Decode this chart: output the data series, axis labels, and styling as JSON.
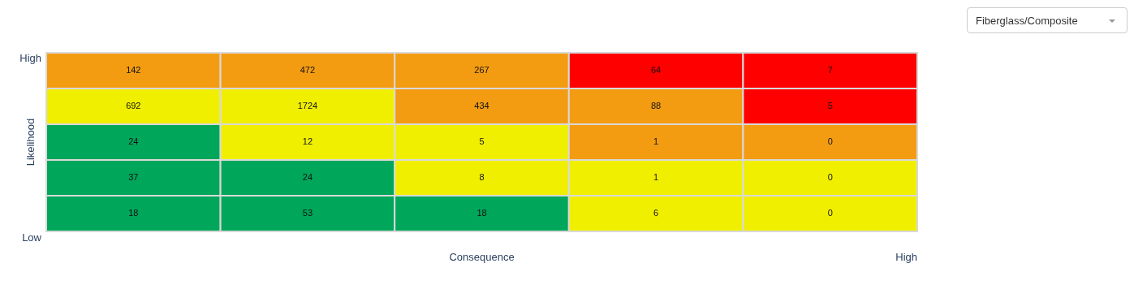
{
  "chart_data": {
    "type": "heatmap",
    "xlabel": "Consequence",
    "ylabel": "Likelihood",
    "categories": [
      null,
      null,
      null,
      null,
      null
    ],
    "y_categories": [
      null,
      null,
      null,
      null,
      null
    ],
    "cells": [
      [
        142,
        472,
        267,
        64,
        7
      ],
      [
        692,
        1724,
        434,
        88,
        5
      ],
      [
        24,
        12,
        5,
        1,
        0
      ],
      [
        37,
        24,
        8,
        1,
        0
      ],
      [
        18,
        53,
        18,
        6,
        0
      ]
    ],
    "colors": [
      [
        "#f39c12",
        "#f39c12",
        "#f39c12",
        "#ff0000",
        "#ff0000"
      ],
      [
        "#f1ef00",
        "#f1ef00",
        "#f39c12",
        "#f39c12",
        "#ff0000"
      ],
      [
        "#00a65a",
        "#f1ef00",
        "#f1ef00",
        "#f39c12",
        "#f39c12"
      ],
      [
        "#00a65a",
        "#00a65a",
        "#f1ef00",
        "#f1ef00",
        "#f1ef00"
      ],
      [
        "#00a65a",
        "#00a65a",
        "#00a65a",
        "#f1ef00",
        "#f1ef00"
      ]
    ],
    "annotations": [
      "High",
      "Low",
      "High",
      "Fiberglass/Composite"
    ],
    "data_labels": true,
    "legend": false
  }
}
